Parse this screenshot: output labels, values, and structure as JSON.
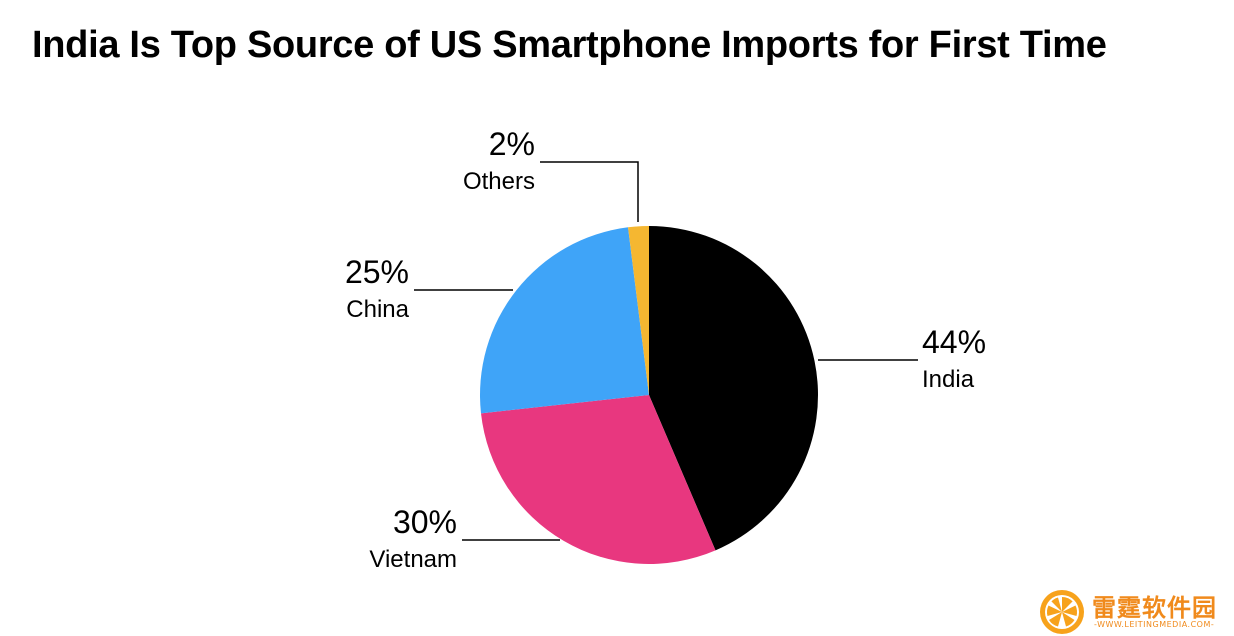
{
  "chart_data": {
    "type": "pie",
    "title": "India Is Top Source of US Smartphone Imports for First Time",
    "slices": [
      {
        "label": "India",
        "value": 44,
        "value_label": "44%",
        "color": "#000000"
      },
      {
        "label": "Vietnam",
        "value": 30,
        "value_label": "30%",
        "color": "#e8377f"
      },
      {
        "label": "China",
        "value": 25,
        "value_label": "25%",
        "color": "#3fa4f8"
      },
      {
        "label": "Others",
        "value": 2,
        "value_label": "2%",
        "color": "#f5b731"
      }
    ],
    "start_angle": "12 o'clock",
    "direction": "clockwise",
    "legend": "none"
  },
  "watermark": {
    "name": "雷霆软件园",
    "url": "-WWW.LEITINGMEDIA.COM-",
    "color": "#f08a1c",
    "icon": "orange-slice-logo-icon"
  }
}
